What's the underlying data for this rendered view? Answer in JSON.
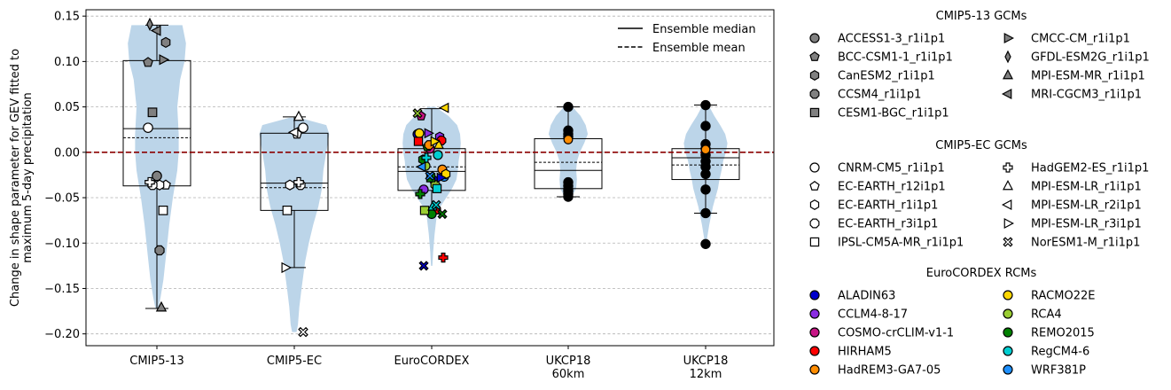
{
  "chart_data": {
    "type": "violin+box+scatter",
    "ylabel_lines": [
      "Change in shape parameter for GEV fitted to",
      "maximum 5-day precipitation"
    ],
    "ylim": [
      -0.213,
      0.157
    ],
    "yticks": [
      0.15,
      0.1,
      0.05,
      0.0,
      -0.05,
      -0.1,
      -0.15,
      -0.2
    ],
    "ytick_labels": [
      "0.15",
      "0.10",
      "0.05",
      "0.00",
      "−0.05",
      "−0.10",
      "−0.15",
      "−0.20"
    ],
    "grid": "horizontal dashed",
    "zero_line": {
      "value": 0.0,
      "color": "#8b0000",
      "style": "dashed"
    },
    "categories": [
      {
        "label_lines": [
          "CMIP5-13"
        ]
      },
      {
        "label_lines": [
          "CMIP5-EC"
        ]
      },
      {
        "label_lines": [
          "EuroCORDEX"
        ]
      },
      {
        "label_lines": [
          "UKCP18",
          "60km"
        ]
      },
      {
        "label_lines": [
          "UKCP18",
          "12km"
        ]
      }
    ],
    "violin_color": "#bcd5e9",
    "violins": [
      {
        "profile": [
          [
            0.14,
            0.35
          ],
          [
            0.12,
            0.4
          ],
          [
            0.1,
            0.38
          ],
          [
            0.08,
            0.32
          ],
          [
            0.05,
            0.28
          ],
          [
            0.02,
            0.3
          ],
          [
            0.0,
            0.3
          ],
          [
            -0.02,
            0.28
          ],
          [
            -0.05,
            0.22
          ],
          [
            -0.08,
            0.17
          ],
          [
            -0.11,
            0.13
          ],
          [
            -0.14,
            0.09
          ],
          [
            -0.16,
            0.05
          ],
          [
            -0.172,
            0.02
          ]
        ]
      },
      {
        "profile": [
          [
            0.038,
            0.07
          ],
          [
            0.03,
            0.44
          ],
          [
            0.02,
            0.48
          ],
          [
            0.0,
            0.44
          ],
          [
            -0.02,
            0.4
          ],
          [
            -0.04,
            0.38
          ],
          [
            -0.06,
            0.33
          ],
          [
            -0.08,
            0.26
          ],
          [
            -0.1,
            0.2
          ],
          [
            -0.12,
            0.15
          ],
          [
            -0.15,
            0.1
          ],
          [
            -0.17,
            0.07
          ],
          [
            -0.19,
            0.05
          ],
          [
            -0.198,
            0.03
          ]
        ]
      },
      {
        "profile": [
          [
            0.05,
            0.05
          ],
          [
            0.04,
            0.23
          ],
          [
            0.03,
            0.35
          ],
          [
            0.02,
            0.39
          ],
          [
            0.01,
            0.4
          ],
          [
            0.0,
            0.39
          ],
          [
            -0.01,
            0.37
          ],
          [
            -0.02,
            0.36
          ],
          [
            -0.03,
            0.34
          ],
          [
            -0.04,
            0.28
          ],
          [
            -0.05,
            0.2
          ],
          [
            -0.06,
            0.12
          ],
          [
            -0.07,
            0.07
          ],
          [
            -0.09,
            0.04
          ],
          [
            -0.11,
            0.02
          ],
          [
            -0.125,
            0.01
          ]
        ]
      },
      {
        "profile": [
          [
            0.05,
            0.06
          ],
          [
            0.04,
            0.17
          ],
          [
            0.03,
            0.24
          ],
          [
            0.02,
            0.27
          ],
          [
            0.01,
            0.22
          ],
          [
            0.0,
            0.16
          ],
          [
            -0.01,
            0.12
          ],
          [
            -0.02,
            0.11
          ],
          [
            -0.03,
            0.12
          ],
          [
            -0.04,
            0.11
          ],
          [
            -0.05,
            0.04
          ]
        ]
      },
      {
        "profile": [
          [
            0.052,
            0.04
          ],
          [
            0.04,
            0.12
          ],
          [
            0.03,
            0.2
          ],
          [
            0.02,
            0.27
          ],
          [
            0.01,
            0.3
          ],
          [
            0.0,
            0.28
          ],
          [
            -0.01,
            0.24
          ],
          [
            -0.02,
            0.22
          ],
          [
            -0.03,
            0.19
          ],
          [
            -0.04,
            0.17
          ],
          [
            -0.06,
            0.1
          ],
          [
            -0.08,
            0.05
          ],
          [
            -0.095,
            0.02
          ],
          [
            -0.102,
            0.01
          ]
        ]
      }
    ],
    "boxes": [
      {
        "whisker_low": -0.172,
        "q1": -0.037,
        "median": 0.026,
        "mean": 0.016,
        "q3": 0.101,
        "whisker_high": 0.14
      },
      {
        "whisker_low": -0.127,
        "q1": -0.064,
        "median": -0.034,
        "mean": -0.039,
        "q3": 0.021,
        "whisker_high": 0.039
      },
      {
        "whisker_low": -0.068,
        "q1": -0.042,
        "median": -0.021,
        "mean": -0.016,
        "q3": 0.004,
        "whisker_high": 0.048
      },
      {
        "whisker_low": -0.049,
        "q1": -0.04,
        "median": -0.02,
        "mean": -0.011,
        "q3": 0.015,
        "whisker_high": 0.05
      },
      {
        "whisker_low": -0.067,
        "q1": -0.03,
        "median": -0.006,
        "mean": -0.014,
        "q3": 0.004,
        "whisker_high": 0.052
      }
    ],
    "series": [
      {
        "name": "ACCESS1-3_r1i1p1",
        "group": "CMIP5-13 GCMs",
        "marker": "circle",
        "fill": "#808080",
        "points": [
          [
            0,
            -0.026
          ]
        ]
      },
      {
        "name": "BCC-CSM1-1_r1i1p1",
        "group": "CMIP5-13 GCMs",
        "marker": "pentagon",
        "fill": "#808080",
        "points": [
          [
            0,
            0.099
          ]
        ]
      },
      {
        "name": "CanESM2_r1i1p1",
        "group": "CMIP5-13 GCMs",
        "marker": "hexagon",
        "fill": "#808080",
        "points": [
          [
            0,
            0.121
          ]
        ]
      },
      {
        "name": "CCSM4_r1i1p1",
        "group": "CMIP5-13 GCMs",
        "marker": "octagon",
        "fill": "#808080",
        "points": [
          [
            0,
            -0.108
          ]
        ]
      },
      {
        "name": "CESM1-BGC_r1i1p1",
        "group": "CMIP5-13 GCMs",
        "marker": "square",
        "fill": "#808080",
        "points": [
          [
            0,
            0.044
          ]
        ]
      },
      {
        "name": "CMCC-CM_r1i1p1",
        "group": "CMIP5-13 GCMs",
        "marker": "tri-right",
        "fill": "#808080",
        "points": [
          [
            0,
            0.102
          ]
        ]
      },
      {
        "name": "GFDL-ESM2G_r1i1p1",
        "group": "CMIP5-13 GCMs",
        "marker": "thin-diamond",
        "fill": "#808080",
        "points": [
          [
            0,
            0.141
          ]
        ]
      },
      {
        "name": "MPI-ESM-MR_r1i1p1",
        "group": "CMIP5-13 GCMs",
        "marker": "tri-up",
        "fill": "#808080",
        "points": [
          [
            0,
            -0.171
          ]
        ]
      },
      {
        "name": "MRI-CGCM3_r1i1p1",
        "group": "CMIP5-13 GCMs",
        "marker": "tri-left",
        "fill": "#808080",
        "points": [
          [
            0,
            0.134
          ]
        ]
      },
      {
        "name": "CNRM-CM5_r1i1p1",
        "group": "CMIP5-EC GCMs",
        "marker": "circle",
        "fill": "#ffffff",
        "points": [
          [
            0,
            0.027
          ],
          [
            1,
            0.027
          ]
        ]
      },
      {
        "name": "EC-EARTH_r12i1p1",
        "group": "CMIP5-EC GCMs",
        "marker": "pentagon",
        "fill": "#ffffff",
        "points": [
          [
            0,
            -0.036
          ],
          [
            1,
            0.02
          ]
        ]
      },
      {
        "name": "EC-EARTH_r1i1p1",
        "group": "CMIP5-EC GCMs",
        "marker": "hexagon",
        "fill": "#ffffff",
        "points": [
          [
            0,
            -0.036
          ],
          [
            1,
            -0.036
          ]
        ]
      },
      {
        "name": "EC-EARTH_r3i1p1",
        "group": "CMIP5-EC GCMs",
        "marker": "octagon",
        "fill": "#ffffff",
        "points": [
          [
            0,
            -0.036
          ],
          [
            1,
            -0.036
          ]
        ]
      },
      {
        "name": "IPSL-CM5A-MR_r1i1p1",
        "group": "CMIP5-EC GCMs",
        "marker": "square",
        "fill": "#ffffff",
        "points": [
          [
            0,
            -0.064
          ],
          [
            1,
            -0.064
          ]
        ]
      },
      {
        "name": "HadGEM2-ES_r1i1p1",
        "group": "CMIP5-EC GCMs",
        "marker": "plus",
        "fill": "#ffffff",
        "points": [
          [
            0,
            -0.033
          ],
          [
            1,
            -0.033
          ]
        ]
      },
      {
        "name": "MPI-ESM-LR_r1i1p1",
        "group": "CMIP5-EC GCMs",
        "marker": "tri-up",
        "fill": "#ffffff",
        "points": [
          [
            1,
            0.039
          ]
        ]
      },
      {
        "name": "MPI-ESM-LR_r2i1p1",
        "group": "CMIP5-EC GCMs",
        "marker": "tri-left",
        "fill": "#ffffff",
        "points": [
          [
            1,
            0.022
          ]
        ]
      },
      {
        "name": "MPI-ESM-LR_r3i1p1",
        "group": "CMIP5-EC GCMs",
        "marker": "tri-right",
        "fill": "#ffffff",
        "points": [
          [
            1,
            -0.127
          ]
        ]
      },
      {
        "name": "NorESM1-M_r1i1p1",
        "group": "CMIP5-EC GCMs",
        "marker": "x-filled",
        "fill": "#ffffff",
        "points": [
          [
            1,
            -0.198
          ]
        ]
      },
      {
        "name": "ALADIN63",
        "group": "EuroCORDEX RCMs",
        "marker": "circle",
        "fill": "#0000cd",
        "points": []
      },
      {
        "name": "CCLM4-8-17",
        "group": "EuroCORDEX RCMs",
        "marker": "circle",
        "fill": "#8a2be2",
        "points": []
      },
      {
        "name": "COSMO-crCLIM-v1-1",
        "group": "EuroCORDEX RCMs",
        "marker": "circle",
        "fill": "#c71585",
        "points": []
      },
      {
        "name": "HIRHAM5",
        "group": "EuroCORDEX RCMs",
        "marker": "circle",
        "fill": "#ff0000",
        "points": []
      },
      {
        "name": "HadREM3-GA7-05",
        "group": "EuroCORDEX RCMs",
        "marker": "circle",
        "fill": "#ff8c00",
        "points": []
      },
      {
        "name": "RACMO22E",
        "group": "EuroCORDEX RCMs",
        "marker": "circle",
        "fill": "#ffd700",
        "points": []
      },
      {
        "name": "RCA4",
        "group": "EuroCORDEX RCMs",
        "marker": "circle",
        "fill": "#9acd32",
        "points": []
      },
      {
        "name": "REMO2015",
        "group": "EuroCORDEX RCMs",
        "marker": "circle",
        "fill": "#008000",
        "points": []
      },
      {
        "name": "RegCM4-6",
        "group": "EuroCORDEX RCMs",
        "marker": "circle",
        "fill": "#00ced1",
        "points": []
      },
      {
        "name": "WRF381P",
        "group": "EuroCORDEX RCMs",
        "marker": "circle",
        "fill": "#1e90ff",
        "points": []
      }
    ],
    "eurocordex_points": [
      {
        "m": "circle",
        "c": "#0000cd",
        "y": 0.02
      },
      {
        "m": "circle",
        "c": "#8a2be2",
        "y": -0.041
      },
      {
        "m": "circle",
        "c": "#c71585",
        "y": 0.004
      },
      {
        "m": "circle",
        "c": "#ff0000",
        "y": -0.063
      },
      {
        "m": "circle",
        "c": "#ff8c00",
        "y": -0.019
      },
      {
        "m": "circle",
        "c": "#ffd700",
        "y": 0.021
      },
      {
        "m": "circle",
        "c": "#9acd32",
        "y": -0.015
      },
      {
        "m": "circle",
        "c": "#008000",
        "y": -0.068
      },
      {
        "m": "circle",
        "c": "#00ced1",
        "y": -0.003
      },
      {
        "m": "circle",
        "c": "#1e90ff",
        "y": -0.027
      },
      {
        "m": "pentagon",
        "c": "#c71585",
        "y": 0.04
      },
      {
        "m": "pentagon",
        "c": "#008000",
        "y": 0.006
      },
      {
        "m": "pentagon",
        "c": "#0000cd",
        "y": -0.03
      },
      {
        "m": "hexagon",
        "c": "#8a2be2",
        "y": 0.017
      },
      {
        "m": "hexagon",
        "c": "#ffd700",
        "y": -0.024
      },
      {
        "m": "hexagon",
        "c": "#008000",
        "y": -0.008
      },
      {
        "m": "octagon",
        "c": "#ff8c00",
        "y": 0.008
      },
      {
        "m": "octagon",
        "c": "#9acd32",
        "y": -0.036
      },
      {
        "m": "octagon",
        "c": "#ff0000",
        "y": 0.013
      },
      {
        "m": "square",
        "c": "#ff0000",
        "y": 0.012
      },
      {
        "m": "square",
        "c": "#9acd32",
        "y": -0.064
      },
      {
        "m": "square",
        "c": "#008000",
        "y": -0.028
      },
      {
        "m": "square",
        "c": "#00ced1",
        "y": -0.04
      },
      {
        "m": "plus",
        "c": "#ff0000",
        "y": -0.116
      },
      {
        "m": "plus",
        "c": "#008000",
        "y": -0.046
      },
      {
        "m": "plus",
        "c": "#00ced1",
        "y": -0.006
      },
      {
        "m": "tri-up",
        "c": "#00ced1",
        "y": -0.06
      },
      {
        "m": "tri-up",
        "c": "#ffd700",
        "y": 0.008
      },
      {
        "m": "tri-left",
        "c": "#ffd700",
        "y": 0.049
      },
      {
        "m": "tri-left",
        "c": "#1e90ff",
        "y": -0.016
      },
      {
        "m": "tri-right",
        "c": "#8a2be2",
        "y": 0.021
      },
      {
        "m": "tri-right",
        "c": "#ffd700",
        "y": 0.012
      },
      {
        "m": "tri-right",
        "c": "#0000cd",
        "y": -0.028
      },
      {
        "m": "x-filled",
        "c": "#9acd32",
        "y": 0.043
      },
      {
        "m": "x-filled",
        "c": "#0000cd",
        "y": -0.125
      },
      {
        "m": "x-filled",
        "c": "#1e90ff",
        "y": -0.026
      },
      {
        "m": "x-filled",
        "c": "#00ced1",
        "y": -0.058
      },
      {
        "m": "x-filled",
        "c": "#008000",
        "y": -0.068
      }
    ],
    "ukcp_points": [
      {
        "cat": 3,
        "values": [
          0.05,
          0.024,
          0.02,
          0.017,
          -0.033,
          -0.037,
          -0.041,
          -0.043,
          -0.046,
          -0.049
        ],
        "highlight": {
          "value": 0.014,
          "color": "#ff8c00"
        }
      },
      {
        "cat": 4,
        "values": [
          0.052,
          0.029,
          0.009,
          0.004,
          -0.003,
          -0.01,
          -0.016,
          -0.024,
          -0.041,
          -0.067,
          -0.101
        ],
        "highlight": {
          "value": 0.003,
          "color": "#ff8c00"
        }
      }
    ],
    "legend_lines": {
      "median": "Ensemble median",
      "mean": "Ensemble mean",
      "placement": "top-right"
    },
    "legend_groups": [
      {
        "title": "CMIP5-13 GCMs",
        "columns": [
          [
            "ACCESS1-3_r1i1p1",
            "BCC-CSM1-1_r1i1p1",
            "CanESM2_r1i1p1",
            "CCSM4_r1i1p1",
            "CESM1-BGC_r1i1p1"
          ],
          [
            "CMCC-CM_r1i1p1",
            "GFDL-ESM2G_r1i1p1",
            "MPI-ESM-MR_r1i1p1",
            "MRI-CGCM3_r1i1p1"
          ]
        ]
      },
      {
        "title": "CMIP5-EC GCMs",
        "columns": [
          [
            "CNRM-CM5_r1i1p1",
            "EC-EARTH_r12i1p1",
            "EC-EARTH_r1i1p1",
            "EC-EARTH_r3i1p1",
            "IPSL-CM5A-MR_r1i1p1"
          ],
          [
            "HadGEM2-ES_r1i1p1",
            "MPI-ESM-LR_r1i1p1",
            "MPI-ESM-LR_r2i1p1",
            "MPI-ESM-LR_r3i1p1",
            "NorESM1-M_r1i1p1"
          ]
        ]
      },
      {
        "title": "EuroCORDEX RCMs",
        "columns": [
          [
            "ALADIN63",
            "CCLM4-8-17",
            "COSMO-crCLIM-v1-1",
            "HIRHAM5",
            "HadREM3-GA7-05"
          ],
          [
            "RACMO22E",
            "RCA4",
            "REMO2015",
            "RegCM4-6",
            "WRF381P"
          ]
        ]
      }
    ]
  }
}
